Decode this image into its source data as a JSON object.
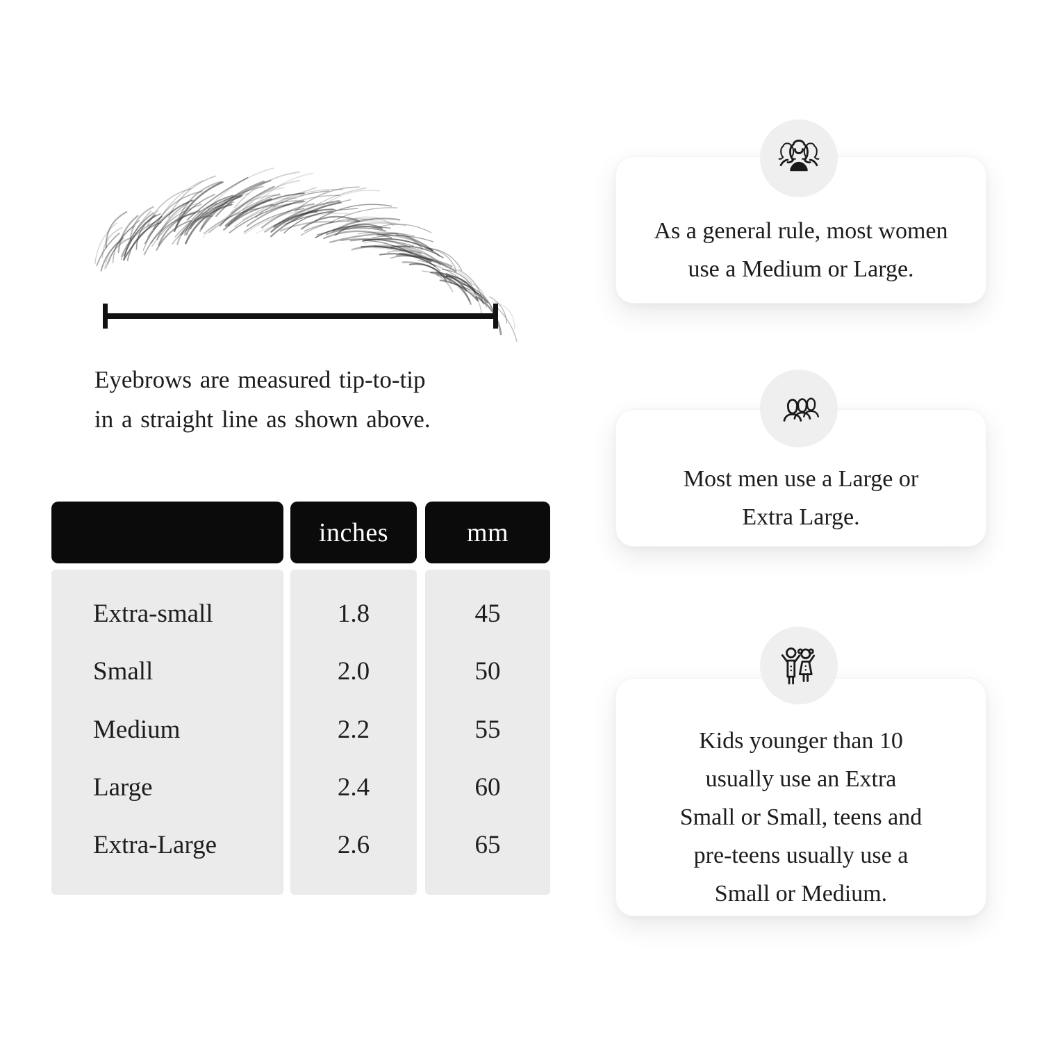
{
  "measure": {
    "caption_lines": [
      "Eyebrows are measured tip-to-tip",
      "in a straight line as shown above."
    ]
  },
  "size_table": {
    "headers": [
      "",
      "inches",
      "mm"
    ],
    "rows": [
      {
        "label": "Extra-small",
        "inches": "1.8",
        "mm": "45"
      },
      {
        "label": "Small",
        "inches": "2.0",
        "mm": "50"
      },
      {
        "label": "Medium",
        "inches": "2.2",
        "mm": "55"
      },
      {
        "label": "Large",
        "inches": "2.4",
        "mm": "60"
      },
      {
        "label": "Extra-Large",
        "inches": "2.6",
        "mm": "65"
      }
    ]
  },
  "cards": [
    {
      "icon": "women-group-icon",
      "lines": [
        "As a general rule, most women",
        "use a Medium or Large."
      ]
    },
    {
      "icon": "men-group-icon",
      "lines": [
        "Most men use a Large or",
        "Extra Large."
      ]
    },
    {
      "icon": "kids-icon",
      "lines": [
        "Kids younger than 10",
        "usually use an Extra",
        "Small or Small, teens and",
        "pre-teens usually use a",
        "Small or Medium."
      ]
    }
  ],
  "colors": {
    "page_background": "#ffffff",
    "table_header_bg": "#0b0b0b",
    "table_header_text": "#ffffff",
    "table_row_bg": "#ebebeb",
    "body_text": "#1d1d1d",
    "card_bg": "#ffffff",
    "icon_circle_bg": "#efefef",
    "icon_stroke": "#1a1a1a",
    "measure_line": "#121212"
  }
}
